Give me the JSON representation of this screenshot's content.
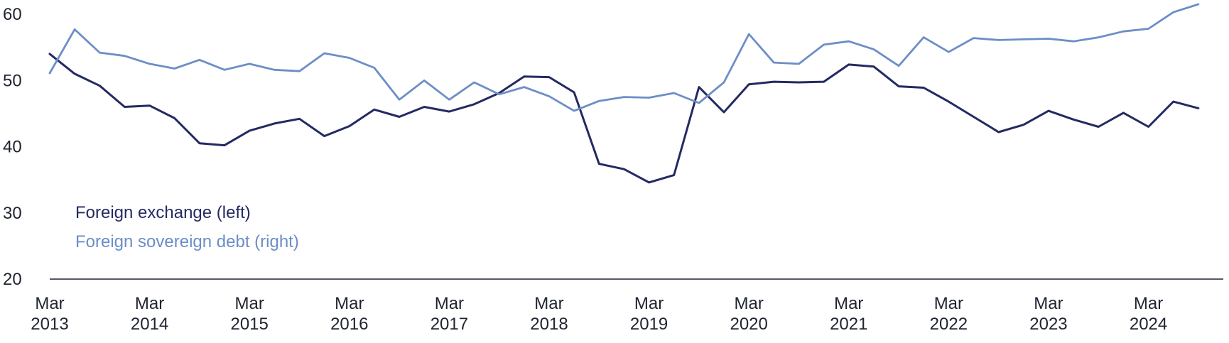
{
  "chart_data": {
    "type": "line",
    "title": "",
    "xlabel": "",
    "ylabel": "",
    "ylim": [
      20,
      60
    ],
    "yticks": [
      20,
      30,
      40,
      50,
      60
    ],
    "xlim": [
      2013.0,
      2024.75
    ],
    "xticks": [
      {
        "value": 2013,
        "lines": [
          "Mar",
          "2013"
        ]
      },
      {
        "value": 2014,
        "lines": [
          "Mar",
          "2014"
        ]
      },
      {
        "value": 2015,
        "lines": [
          "Mar",
          "2015"
        ]
      },
      {
        "value": 2016,
        "lines": [
          "Mar",
          "2016"
        ]
      },
      {
        "value": 2017,
        "lines": [
          "Mar",
          "2017"
        ]
      },
      {
        "value": 2018,
        "lines": [
          "Mar",
          "2018"
        ]
      },
      {
        "value": 2019,
        "lines": [
          "Mar",
          "2019"
        ]
      },
      {
        "value": 2020,
        "lines": [
          "Mar",
          "2020"
        ]
      },
      {
        "value": 2021,
        "lines": [
          "Mar",
          "2021"
        ]
      },
      {
        "value": 2022,
        "lines": [
          "Mar",
          "2022"
        ]
      },
      {
        "value": 2023,
        "lines": [
          "Mar",
          "2023"
        ]
      },
      {
        "value": 2024,
        "lines": [
          "Mar",
          "2024"
        ]
      }
    ],
    "grid": false,
    "legend_position": "bottom-left",
    "series": [
      {
        "name": "Foreign exchange (left)",
        "color": "#232a62",
        "points": [
          [
            2013.0,
            54.0
          ],
          [
            2013.25,
            51.0
          ],
          [
            2013.5,
            49.2
          ],
          [
            2013.75,
            46.0
          ],
          [
            2014.0,
            46.2
          ],
          [
            2014.25,
            44.3
          ],
          [
            2014.5,
            40.5
          ],
          [
            2014.75,
            40.2
          ],
          [
            2015.0,
            42.4
          ],
          [
            2015.25,
            43.5
          ],
          [
            2015.5,
            44.2
          ],
          [
            2015.75,
            41.6
          ],
          [
            2016.0,
            43.1
          ],
          [
            2016.25,
            45.6
          ],
          [
            2016.5,
            44.5
          ],
          [
            2016.75,
            46.0
          ],
          [
            2017.0,
            45.3
          ],
          [
            2017.25,
            46.4
          ],
          [
            2017.5,
            48.1
          ],
          [
            2017.75,
            50.6
          ],
          [
            2018.0,
            50.5
          ],
          [
            2018.25,
            48.2
          ],
          [
            2018.5,
            37.4
          ],
          [
            2018.75,
            36.6
          ],
          [
            2019.0,
            34.6
          ],
          [
            2019.25,
            35.7
          ],
          [
            2019.5,
            49.0
          ],
          [
            2019.75,
            45.2
          ],
          [
            2020.0,
            49.4
          ],
          [
            2020.25,
            49.8
          ],
          [
            2020.5,
            49.7
          ],
          [
            2020.75,
            49.8
          ],
          [
            2021.0,
            52.4
          ],
          [
            2021.25,
            52.1
          ],
          [
            2021.5,
            49.1
          ],
          [
            2021.75,
            48.9
          ],
          [
            2022.0,
            46.8
          ],
          [
            2022.25,
            44.5
          ],
          [
            2022.5,
            42.2
          ],
          [
            2022.75,
            43.3
          ],
          [
            2023.0,
            45.4
          ],
          [
            2023.25,
            44.1
          ],
          [
            2023.5,
            43.0
          ],
          [
            2023.75,
            45.1
          ],
          [
            2024.0,
            43.0
          ],
          [
            2024.25,
            46.8
          ],
          [
            2024.5,
            45.8
          ]
        ]
      },
      {
        "name": "Foreign sovereign debt (right)",
        "color": "#6c8ec7",
        "points": [
          [
            2013.0,
            51.1
          ],
          [
            2013.25,
            57.7
          ],
          [
            2013.5,
            54.2
          ],
          [
            2013.75,
            53.7
          ],
          [
            2014.0,
            52.5
          ],
          [
            2014.25,
            51.8
          ],
          [
            2014.5,
            53.1
          ],
          [
            2014.75,
            51.6
          ],
          [
            2015.0,
            52.5
          ],
          [
            2015.25,
            51.6
          ],
          [
            2015.5,
            51.4
          ],
          [
            2015.75,
            54.1
          ],
          [
            2016.0,
            53.4
          ],
          [
            2016.25,
            51.9
          ],
          [
            2016.5,
            47.1
          ],
          [
            2016.75,
            50.0
          ],
          [
            2017.0,
            47.1
          ],
          [
            2017.25,
            49.7
          ],
          [
            2017.5,
            47.9
          ],
          [
            2017.75,
            49.0
          ],
          [
            2018.0,
            47.6
          ],
          [
            2018.25,
            45.4
          ],
          [
            2018.5,
            46.9
          ],
          [
            2018.75,
            47.5
          ],
          [
            2019.0,
            47.4
          ],
          [
            2019.25,
            48.1
          ],
          [
            2019.5,
            46.6
          ],
          [
            2019.75,
            49.7
          ],
          [
            2020.0,
            57.0
          ],
          [
            2020.25,
            52.7
          ],
          [
            2020.5,
            52.5
          ],
          [
            2020.75,
            55.4
          ],
          [
            2021.0,
            55.9
          ],
          [
            2021.25,
            54.7
          ],
          [
            2021.5,
            52.2
          ],
          [
            2021.75,
            56.5
          ],
          [
            2022.0,
            54.3
          ],
          [
            2022.25,
            56.4
          ],
          [
            2022.5,
            56.1
          ],
          [
            2022.75,
            56.2
          ],
          [
            2023.0,
            56.3
          ],
          [
            2023.25,
            55.9
          ],
          [
            2023.5,
            56.5
          ],
          [
            2023.75,
            57.4
          ],
          [
            2024.0,
            57.8
          ],
          [
            2024.25,
            60.3
          ],
          [
            2024.5,
            61.5
          ]
        ]
      }
    ]
  }
}
